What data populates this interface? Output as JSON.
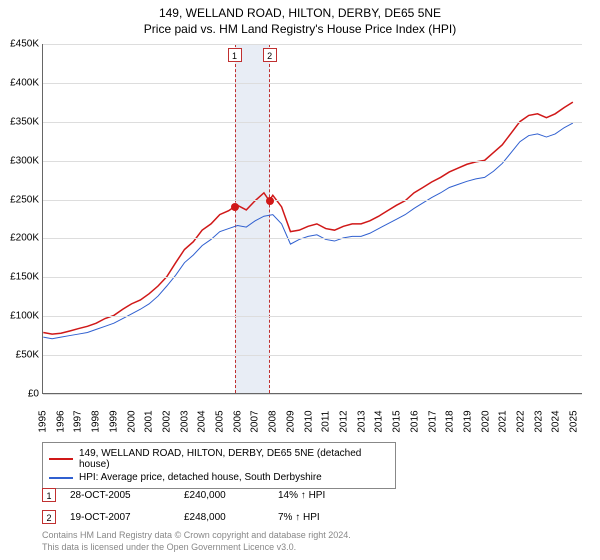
{
  "title": "149, WELLAND ROAD, HILTON, DERBY, DE65 5NE",
  "subtitle": "Price paid vs. HM Land Registry's House Price Index (HPI)",
  "chart": {
    "type": "line",
    "background_color": "#ffffff",
    "grid_color": "#dddddd",
    "axis_color": "#666666",
    "x_years": [
      1995,
      1996,
      1997,
      1998,
      1999,
      2000,
      2001,
      2002,
      2003,
      2004,
      2005,
      2006,
      2007,
      2008,
      2009,
      2010,
      2011,
      2012,
      2013,
      2014,
      2015,
      2016,
      2017,
      2018,
      2019,
      2020,
      2021,
      2022,
      2023,
      2024,
      2025
    ],
    "x_min": 1995,
    "x_max": 2025.5,
    "y_ticks": [
      0,
      50000,
      100000,
      150000,
      200000,
      250000,
      300000,
      350000,
      400000,
      450000
    ],
    "y_tick_labels": [
      "£0",
      "£50K",
      "£100K",
      "£150K",
      "£200K",
      "£250K",
      "£300K",
      "£350K",
      "£400K",
      "£450K"
    ],
    "y_min": 0,
    "y_max": 450000,
    "highlight_band": {
      "start": 2005.82,
      "end": 2007.8
    },
    "markers": [
      {
        "num": "1",
        "x": 2005.82,
        "y": 240000,
        "label_y": 445000
      },
      {
        "num": "2",
        "x": 2007.8,
        "y": 248000,
        "label_y": 445000
      }
    ],
    "series": [
      {
        "name": "149, WELLAND ROAD, HILTON, DERBY, DE65 5NE (detached house)",
        "color": "#d01818",
        "line_width": 1.5,
        "data": [
          [
            1995,
            78000
          ],
          [
            1995.5,
            76000
          ],
          [
            1996,
            77000
          ],
          [
            1996.5,
            80000
          ],
          [
            1997,
            83000
          ],
          [
            1997.5,
            86000
          ],
          [
            1998,
            90000
          ],
          [
            1998.5,
            96000
          ],
          [
            1999,
            100000
          ],
          [
            1999.5,
            108000
          ],
          [
            2000,
            115000
          ],
          [
            2000.5,
            120000
          ],
          [
            2001,
            128000
          ],
          [
            2001.5,
            138000
          ],
          [
            2002,
            150000
          ],
          [
            2002.5,
            168000
          ],
          [
            2003,
            185000
          ],
          [
            2003.5,
            195000
          ],
          [
            2004,
            210000
          ],
          [
            2004.5,
            218000
          ],
          [
            2005,
            230000
          ],
          [
            2005.5,
            235000
          ],
          [
            2005.82,
            240000
          ],
          [
            2006,
            242000
          ],
          [
            2006.5,
            236000
          ],
          [
            2007,
            248000
          ],
          [
            2007.5,
            258000
          ],
          [
            2007.8,
            248000
          ],
          [
            2008,
            255000
          ],
          [
            2008.5,
            240000
          ],
          [
            2009,
            208000
          ],
          [
            2009.5,
            210000
          ],
          [
            2010,
            215000
          ],
          [
            2010.5,
            218000
          ],
          [
            2011,
            212000
          ],
          [
            2011.5,
            210000
          ],
          [
            2012,
            215000
          ],
          [
            2012.5,
            218000
          ],
          [
            2013,
            218000
          ],
          [
            2013.5,
            222000
          ],
          [
            2014,
            228000
          ],
          [
            2014.5,
            235000
          ],
          [
            2015,
            242000
          ],
          [
            2015.5,
            248000
          ],
          [
            2016,
            258000
          ],
          [
            2016.5,
            265000
          ],
          [
            2017,
            272000
          ],
          [
            2017.5,
            278000
          ],
          [
            2018,
            285000
          ],
          [
            2018.5,
            290000
          ],
          [
            2019,
            295000
          ],
          [
            2019.5,
            298000
          ],
          [
            2020,
            300000
          ],
          [
            2020.5,
            310000
          ],
          [
            2021,
            320000
          ],
          [
            2021.5,
            335000
          ],
          [
            2022,
            350000
          ],
          [
            2022.5,
            358000
          ],
          [
            2023,
            360000
          ],
          [
            2023.5,
            355000
          ],
          [
            2024,
            360000
          ],
          [
            2024.5,
            368000
          ],
          [
            2025,
            375000
          ]
        ]
      },
      {
        "name": "HPI: Average price, detached house, South Derbyshire",
        "color": "#3060d0",
        "line_width": 1,
        "data": [
          [
            1995,
            72000
          ],
          [
            1995.5,
            70000
          ],
          [
            1996,
            72000
          ],
          [
            1996.5,
            74000
          ],
          [
            1997,
            76000
          ],
          [
            1997.5,
            78000
          ],
          [
            1998,
            82000
          ],
          [
            1998.5,
            86000
          ],
          [
            1999,
            90000
          ],
          [
            1999.5,
            96000
          ],
          [
            2000,
            102000
          ],
          [
            2000.5,
            108000
          ],
          [
            2001,
            115000
          ],
          [
            2001.5,
            125000
          ],
          [
            2002,
            138000
          ],
          [
            2002.5,
            152000
          ],
          [
            2003,
            168000
          ],
          [
            2003.5,
            178000
          ],
          [
            2004,
            190000
          ],
          [
            2004.5,
            198000
          ],
          [
            2005,
            208000
          ],
          [
            2005.5,
            212000
          ],
          [
            2006,
            216000
          ],
          [
            2006.5,
            214000
          ],
          [
            2007,
            222000
          ],
          [
            2007.5,
            228000
          ],
          [
            2008,
            230000
          ],
          [
            2008.5,
            218000
          ],
          [
            2009,
            192000
          ],
          [
            2009.5,
            198000
          ],
          [
            2010,
            202000
          ],
          [
            2010.5,
            204000
          ],
          [
            2011,
            198000
          ],
          [
            2011.5,
            196000
          ],
          [
            2012,
            200000
          ],
          [
            2012.5,
            202000
          ],
          [
            2013,
            202000
          ],
          [
            2013.5,
            206000
          ],
          [
            2014,
            212000
          ],
          [
            2014.5,
            218000
          ],
          [
            2015,
            224000
          ],
          [
            2015.5,
            230000
          ],
          [
            2016,
            238000
          ],
          [
            2016.5,
            245000
          ],
          [
            2017,
            252000
          ],
          [
            2017.5,
            258000
          ],
          [
            2018,
            265000
          ],
          [
            2018.5,
            269000
          ],
          [
            2019,
            273000
          ],
          [
            2019.5,
            276000
          ],
          [
            2020,
            278000
          ],
          [
            2020.5,
            286000
          ],
          [
            2021,
            296000
          ],
          [
            2021.5,
            310000
          ],
          [
            2022,
            324000
          ],
          [
            2022.5,
            332000
          ],
          [
            2023,
            334000
          ],
          [
            2023.5,
            330000
          ],
          [
            2024,
            334000
          ],
          [
            2024.5,
            342000
          ],
          [
            2025,
            348000
          ]
        ]
      }
    ]
  },
  "legend": {
    "items": [
      {
        "color": "#d01818",
        "label": "149, WELLAND ROAD, HILTON, DERBY, DE65 5NE (detached house)"
      },
      {
        "color": "#3060d0",
        "label": "HPI: Average price, detached house, South Derbyshire"
      }
    ]
  },
  "sales": [
    {
      "num": "1",
      "date": "28-OCT-2005",
      "price": "£240,000",
      "delta": "14% ↑ HPI"
    },
    {
      "num": "2",
      "date": "19-OCT-2007",
      "price": "£248,000",
      "delta": "7% ↑ HPI"
    }
  ],
  "footnote_line1": "Contains HM Land Registry data © Crown copyright and database right 2024.",
  "footnote_line2": "This data is licensed under the Open Government Licence v3.0."
}
